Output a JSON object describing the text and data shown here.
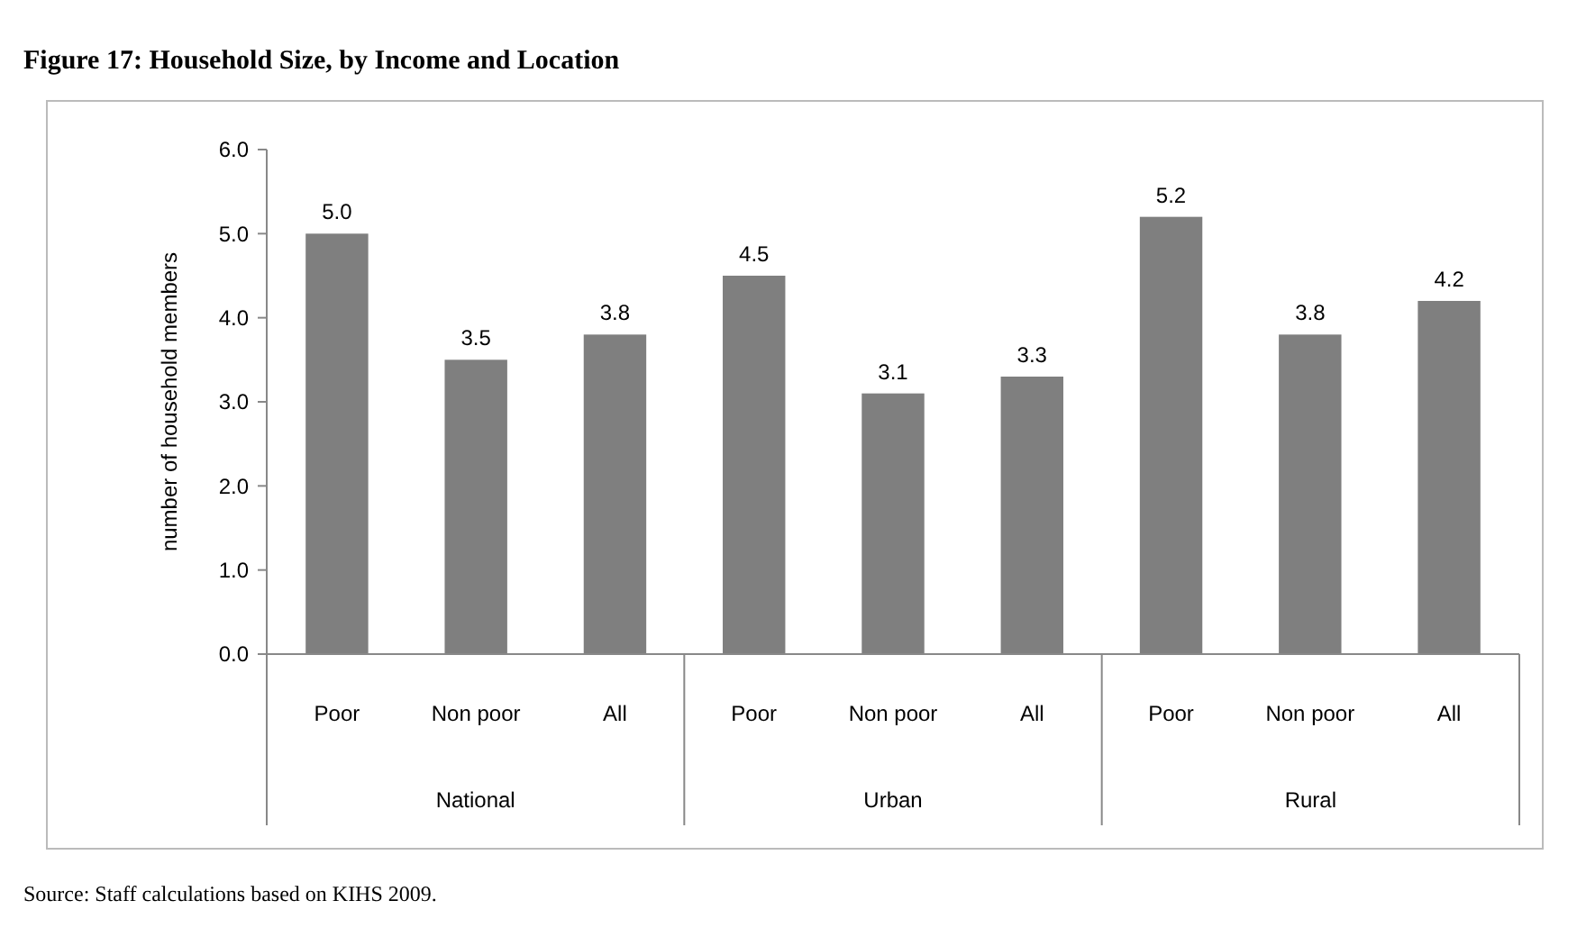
{
  "chart_data": {
    "type": "bar",
    "title": "Figure 17: Household Size, by Income and Location",
    "ylabel": "number of household members",
    "categories": [
      "Poor",
      "Non poor",
      "All",
      "Poor",
      "Non poor",
      "All",
      "Poor",
      "Non poor",
      "All"
    ],
    "values": [
      5.0,
      3.5,
      3.8,
      4.5,
      3.1,
      3.3,
      5.2,
      3.8,
      4.2
    ],
    "color": "#7f7f7f",
    "ylim": [
      0,
      6
    ],
    "yticks": [
      {
        "value": 0,
        "label": "0.0"
      },
      {
        "value": 1,
        "label": "1.0"
      },
      {
        "value": 2,
        "label": "2.0"
      },
      {
        "value": 3,
        "label": "3.0"
      },
      {
        "value": 4,
        "label": "4.0"
      },
      {
        "value": 5,
        "label": "5.0"
      },
      {
        "value": 6,
        "label": "6.0"
      }
    ],
    "value_labels": [
      "5.0",
      "3.5",
      "3.8",
      "4.5",
      "3.1",
      "3.3",
      "5.2",
      "3.8",
      "4.2"
    ],
    "grid": false,
    "annotations": [
      "National",
      "Urban",
      "Rural",
      "Source: Staff calculations based on KIHS 2009."
    ]
  }
}
